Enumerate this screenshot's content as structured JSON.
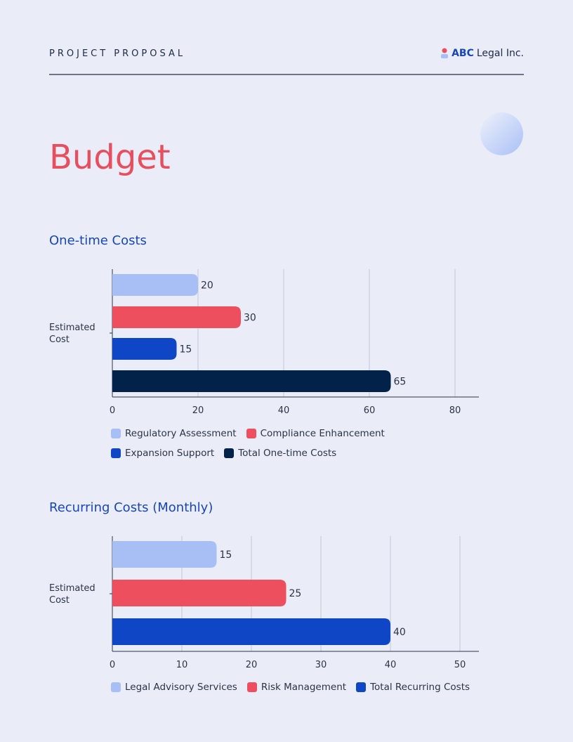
{
  "header": {
    "label": "PROJECT PROPOSAL",
    "logo_bold": "ABC",
    "logo_text": "Legal Inc."
  },
  "page_title": "Budget",
  "chart_data": [
    {
      "type": "bar",
      "orientation": "horizontal",
      "title": "One-time Costs",
      "categories": [
        "Estimated Cost"
      ],
      "series": [
        {
          "name": "Regulatory Assessment",
          "values": [
            20
          ],
          "color": "#a8bff5"
        },
        {
          "name": "Compliance Enhancement",
          "values": [
            30
          ],
          "color": "#ee4f5e"
        },
        {
          "name": "Expansion Support",
          "values": [
            15
          ],
          "color": "#0f46c6"
        },
        {
          "name": "Total One-time Costs",
          "values": [
            65
          ],
          "color": "#02224a"
        }
      ],
      "xlim": [
        0,
        86
      ],
      "xticks": [
        0,
        20,
        40,
        60,
        80
      ],
      "grid": true,
      "legend": "bottom"
    },
    {
      "type": "bar",
      "orientation": "horizontal",
      "title": "Recurring Costs (Monthly)",
      "categories": [
        "Estimated Cost"
      ],
      "series": [
        {
          "name": "Legal Advisory Services",
          "values": [
            15
          ],
          "color": "#a8bff5"
        },
        {
          "name": "Risk Management",
          "values": [
            25
          ],
          "color": "#ee4f5e"
        },
        {
          "name": "Total Recurring Costs",
          "values": [
            40
          ],
          "color": "#0f46c6"
        }
      ],
      "xlim": [
        0,
        53
      ],
      "xticks": [
        0,
        10,
        20,
        30,
        40,
        50
      ],
      "grid": true,
      "legend": "bottom"
    }
  ]
}
